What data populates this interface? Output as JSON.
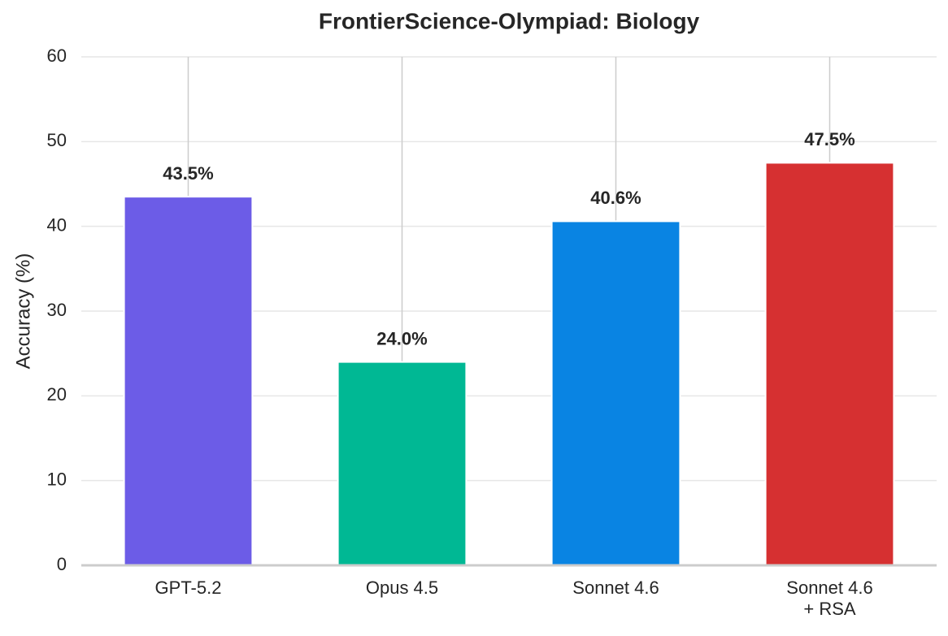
{
  "chart_data": {
    "type": "bar",
    "title": "FrontierScience-Olympiad: Biology",
    "y_label": "Accuracy (%)",
    "categories": [
      "GPT-5.2",
      "Opus 4.5",
      "Sonnet 4.6",
      "Sonnet 4.6\n+ RSA"
    ],
    "values": [
      43.5,
      24.0,
      40.6,
      47.5
    ],
    "value_labels": [
      "43.5%",
      "24.0%",
      "40.6%",
      "47.5%"
    ],
    "colors": [
      "#6c5ce7",
      "#00b894",
      "#0984e3",
      "#d63031"
    ],
    "ylim": [
      0,
      60
    ],
    "yticks": [
      0,
      10,
      20,
      30,
      40,
      50,
      60
    ],
    "grid": true
  }
}
